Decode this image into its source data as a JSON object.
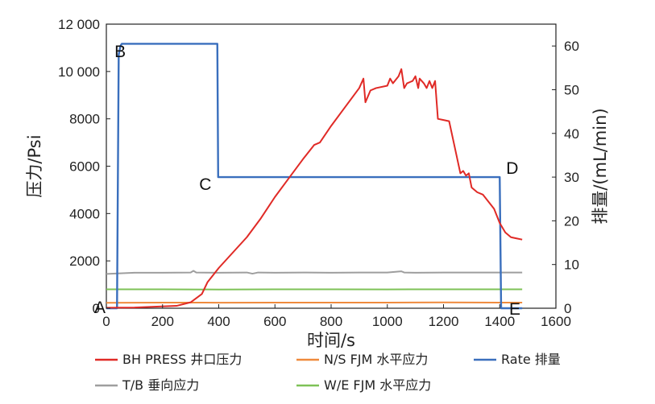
{
  "chart_data": {
    "type": "line",
    "x_axis": {
      "label": "时间/s",
      "range": [
        0,
        1600
      ],
      "ticks": [
        0,
        200,
        400,
        600,
        800,
        1000,
        1200,
        1400,
        1600
      ],
      "tick_labels": [
        "0",
        "200",
        "400",
        "600",
        "800",
        "1000",
        "1200",
        "1400",
        "1600"
      ]
    },
    "y_axis_left": {
      "label": "压力/Psi",
      "range": [
        0,
        12000
      ],
      "ticks": [
        0,
        2000,
        4000,
        6000,
        8000,
        10000,
        12000
      ],
      "tick_labels": [
        "0",
        "2000",
        "4000",
        "6000",
        "8000",
        "10 000",
        "12 000"
      ]
    },
    "y_axis_right": {
      "label": "排量/(mL/min)",
      "range": [
        0,
        65
      ],
      "ticks": [
        0,
        10,
        20,
        30,
        40,
        50,
        60
      ],
      "tick_labels": [
        "0",
        "10",
        "20",
        "30",
        "40",
        "50",
        "60"
      ]
    },
    "grid": false,
    "legend_position": "bottom",
    "series": [
      {
        "name": "BH PRESS 井口压力",
        "axis": "left",
        "color": "#e02a26",
        "x": [
          0,
          100,
          250,
          300,
          340,
          360,
          380,
          400,
          450,
          500,
          550,
          600,
          650,
          700,
          740,
          760,
          800,
          850,
          900,
          915,
          922,
          940,
          960,
          1000,
          1010,
          1020,
          1040,
          1050,
          1060,
          1070,
          1090,
          1100,
          1110,
          1115,
          1130,
          1140,
          1150,
          1160,
          1170,
          1180,
          1200,
          1220,
          1240,
          1260,
          1270,
          1280,
          1290,
          1300,
          1320,
          1340,
          1360,
          1380,
          1400,
          1420,
          1440,
          1460,
          1480
        ],
        "y": [
          20,
          30,
          100,
          250,
          600,
          1100,
          1400,
          1700,
          2350,
          3000,
          3800,
          4700,
          5500,
          6300,
          6900,
          7000,
          7700,
          8500,
          9300,
          9700,
          8700,
          9200,
          9300,
          9400,
          9700,
          9500,
          9800,
          10100,
          9300,
          9500,
          9600,
          9800,
          9300,
          9700,
          9500,
          9300,
          9600,
          9300,
          9600,
          8000,
          7950,
          7900,
          6800,
          5700,
          5800,
          5600,
          5700,
          5100,
          4900,
          4800,
          4500,
          4200,
          3600,
          3200,
          3000,
          2950,
          2900
        ]
      },
      {
        "name": "N/S FJM 水平应力",
        "axis": "left",
        "color": "#ef8a3c",
        "x": [
          0,
          200,
          400,
          600,
          800,
          1000,
          1200,
          1400,
          1480
        ],
        "y": [
          230,
          240,
          235,
          240,
          238,
          240,
          245,
          240,
          240
        ]
      },
      {
        "name": "Rate 排量",
        "axis": "right",
        "color": "#3a6fbd",
        "x": [
          0,
          38,
          44,
          50,
          55,
          395,
          398,
          1400,
          1405,
          1480
        ],
        "y": [
          0,
          0,
          58,
          60,
          60.5,
          60.5,
          30,
          30,
          0,
          0
        ]
      },
      {
        "name": "T/B 垂向应力",
        "axis": "left",
        "color": "#9e9e9e",
        "x": [
          0,
          100,
          200,
          300,
          310,
          320,
          400,
          500,
          520,
          540,
          600,
          700,
          800,
          900,
          1000,
          1050,
          1060,
          1100,
          1200,
          1300,
          1400,
          1480
        ],
        "y": [
          1450,
          1500,
          1500,
          1510,
          1580,
          1510,
          1500,
          1510,
          1460,
          1510,
          1500,
          1510,
          1500,
          1510,
          1510,
          1560,
          1510,
          1500,
          1510,
          1510,
          1510,
          1510
        ]
      },
      {
        "name": "W/E FJM 水平应力",
        "axis": "left",
        "color": "#7ec257",
        "x": [
          0,
          200,
          400,
          600,
          800,
          1000,
          1200,
          1400,
          1480
        ],
        "y": [
          800,
          800,
          790,
          800,
          800,
          795,
          800,
          800,
          800
        ]
      }
    ],
    "point_labels": [
      {
        "text": "A",
        "x": 0,
        "y_left": 0
      },
      {
        "text": "B",
        "x": 55,
        "y_left": 11150
      },
      {
        "text": "C",
        "x": 398,
        "y_left": 5540
      },
      {
        "text": "D",
        "x": 1400,
        "y_left": 5540
      },
      {
        "text": "E",
        "x": 1405,
        "y_left": 0
      }
    ]
  }
}
